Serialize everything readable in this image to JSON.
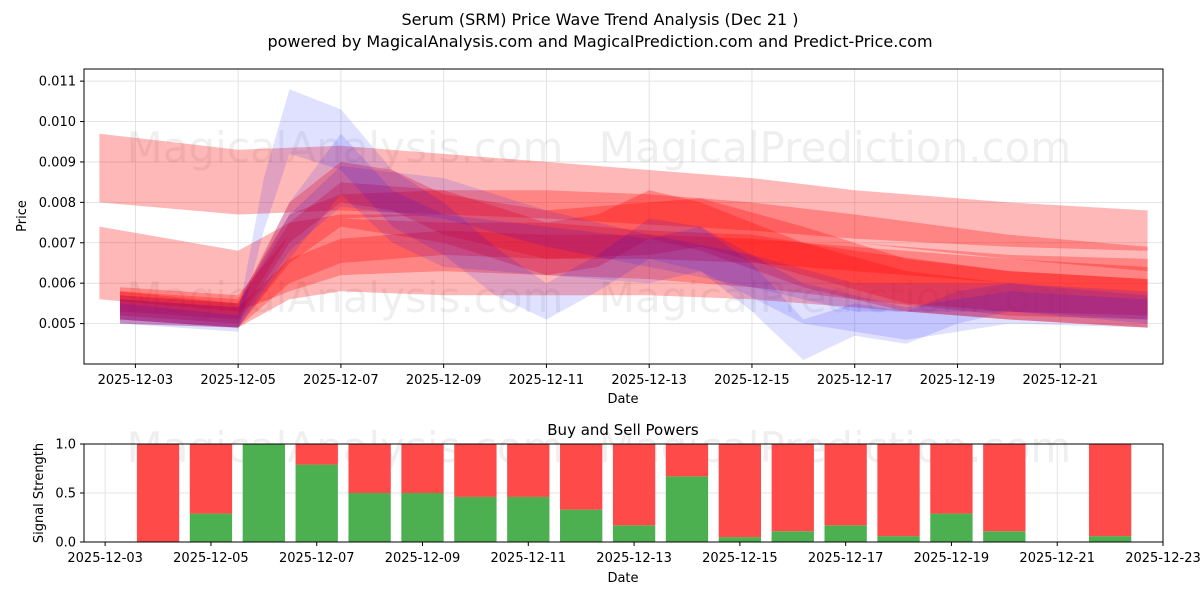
{
  "colors": {
    "red": "#ff0000",
    "blue": "#0000ff",
    "buy": "#4caf50",
    "sell": "#ff4a4a"
  },
  "figure": {
    "title_line1": "Serum (SRM) Price Wave Trend Analysis (Dec 21 )",
    "title_line2": "powered by MagicalAnalysis.com and MagicalPrediction.com and Predict-Price.com",
    "watermark_a": "MagicalAnalysis.com",
    "watermark_b": "MagicalPrediction.com"
  },
  "chart_data": [
    {
      "type": "area",
      "title": "",
      "xlabel": "Date",
      "ylabel": "Price",
      "xlim": [
        "2025-12-02",
        "2025-12-23"
      ],
      "ylim": [
        0.004,
        0.0113
      ],
      "x_ticks": [
        "2025-12-03",
        "2025-12-05",
        "2025-12-07",
        "2025-12-09",
        "2025-12-11",
        "2025-12-13",
        "2025-12-15",
        "2025-12-17",
        "2025-12-19",
        "2025-12-21"
      ],
      "y_ticks": [
        "0.005",
        "0.006",
        "0.007",
        "0.008",
        "0.009",
        "0.010",
        "0.011"
      ],
      "grid": true,
      "bands": [
        {
          "color": "red",
          "x": [
            "2025-12-02.3",
            "2025-12-05",
            "2025-12-07",
            "2025-12-11",
            "2025-12-15",
            "2025-12-17",
            "2025-12-20",
            "2025-12-22.7"
          ],
          "upper": [
            0.0097,
            0.0093,
            0.0094,
            0.009,
            0.0086,
            0.0083,
            0.008,
            0.0078
          ],
          "lower": [
            0.008,
            0.0077,
            0.0078,
            0.0076,
            0.0073,
            0.0071,
            0.0069,
            0.0068
          ]
        },
        {
          "color": "red",
          "x": [
            "2025-12-02.3",
            "2025-12-05",
            "2025-12-06",
            "2025-12-07",
            "2025-12-09",
            "2025-12-11",
            "2025-12-13",
            "2025-12-15",
            "2025-12-17",
            "2025-12-20",
            "2025-12-22.7"
          ],
          "upper": [
            0.0074,
            0.0068,
            0.0075,
            0.0077,
            0.0077,
            0.0076,
            0.0075,
            0.0073,
            0.007,
            0.0067,
            0.0066
          ],
          "lower": [
            0.0056,
            0.0053,
            0.0058,
            0.0062,
            0.0063,
            0.0062,
            0.0061,
            0.0059,
            0.0056,
            0.0052,
            0.0051
          ]
        },
        {
          "color": "red",
          "x": [
            "2025-12-02.7",
            "2025-12-05",
            "2025-12-06",
            "2025-12-07",
            "2025-12-09",
            "2025-12-11",
            "2025-12-13",
            "2025-12-15",
            "2025-12-17",
            "2025-12-20",
            "2025-12-22.7"
          ],
          "upper": [
            0.0059,
            0.0057,
            0.0072,
            0.0076,
            0.0075,
            0.0075,
            0.0073,
            0.0072,
            0.0068,
            0.0063,
            0.0061
          ],
          "lower": [
            0.0051,
            0.0049,
            0.0056,
            0.0058,
            0.0057,
            0.0057,
            0.0057,
            0.0056,
            0.0054,
            0.0051,
            0.0049
          ]
        },
        {
          "color": "red",
          "x": [
            "2025-12-02.7",
            "2025-12-05",
            "2025-12-06",
            "2025-12-07",
            "2025-12-09",
            "2025-12-11",
            "2025-12-13",
            "2025-12-15",
            "2025-12-17",
            "2025-12-20",
            "2025-12-22.7"
          ],
          "upper": [
            0.0058,
            0.0056,
            0.0077,
            0.0082,
            0.0083,
            0.0083,
            0.0082,
            0.008,
            0.0077,
            0.0072,
            0.0069
          ],
          "lower": [
            0.0053,
            0.0051,
            0.0072,
            0.0076,
            0.0077,
            0.0076,
            0.0075,
            0.0073,
            0.007,
            0.0066,
            0.0063
          ]
        },
        {
          "color": "red",
          "x": [
            "2025-12-02.7",
            "2025-12-05",
            "2025-12-06",
            "2025-12-07",
            "2025-12-09",
            "2025-12-11",
            "2025-12-13",
            "2025-12-15",
            "2025-12-17",
            "2025-12-20",
            "2025-12-22.7"
          ],
          "upper": [
            0.0056,
            0.0054,
            0.0066,
            0.0071,
            0.0073,
            0.0072,
            0.0072,
            0.0071,
            0.0069,
            0.0066,
            0.0064
          ],
          "lower": [
            0.0051,
            0.0049,
            0.006,
            0.0065,
            0.0067,
            0.0066,
            0.0066,
            0.0065,
            0.0063,
            0.006,
            0.0058
          ]
        },
        {
          "color": "red",
          "x": [
            "2025-12-02.7",
            "2025-12-05",
            "2025-12-06",
            "2025-12-07",
            "2025-12-08",
            "2025-12-09",
            "2025-12-11",
            "2025-12-13",
            "2025-12-14",
            "2025-12-16",
            "2025-12-18",
            "2025-12-20",
            "2025-12-22.7"
          ],
          "upper": [
            0.0058,
            0.0055,
            0.008,
            0.009,
            0.0088,
            0.0082,
            0.0078,
            0.008,
            0.0081,
            0.0074,
            0.0066,
            0.0063,
            0.0061
          ],
          "lower": [
            0.0052,
            0.005,
            0.007,
            0.008,
            0.0078,
            0.0072,
            0.0066,
            0.0067,
            0.0069,
            0.0062,
            0.0055,
            0.0053,
            0.0052
          ]
        },
        {
          "color": "red",
          "x": [
            "2025-12-02.7",
            "2025-12-05",
            "2025-12-06",
            "2025-12-07",
            "2025-12-09",
            "2025-12-11",
            "2025-12-12",
            "2025-12-13",
            "2025-12-14",
            "2025-12-16",
            "2025-12-18",
            "2025-12-20",
            "2025-12-22.7"
          ],
          "upper": [
            0.0057,
            0.0055,
            0.0075,
            0.0085,
            0.0083,
            0.0075,
            0.0077,
            0.0083,
            0.008,
            0.007,
            0.0063,
            0.006,
            0.0058
          ],
          "lower": [
            0.005,
            0.0049,
            0.0065,
            0.0074,
            0.007,
            0.0062,
            0.0064,
            0.0071,
            0.0068,
            0.0059,
            0.0053,
            0.0051,
            0.0049
          ]
        },
        {
          "color": "blue",
          "x": [
            "2025-12-02.7",
            "2025-12-05",
            "2025-12-05.5",
            "2025-12-06",
            "2025-12-07",
            "2025-12-08",
            "2025-12-09",
            "2025-12-10",
            "2025-12-11",
            "2025-12-12",
            "2025-12-13",
            "2025-12-14",
            "2025-12-15",
            "2025-12-16",
            "2025-12-17",
            "2025-12-18",
            "2025-12-19",
            "2025-12-20",
            "2025-12-22.7"
          ],
          "upper": [
            0.0055,
            0.0052,
            0.0086,
            0.0108,
            0.0103,
            0.0088,
            0.008,
            0.0069,
            0.006,
            0.0067,
            0.0076,
            0.0074,
            0.0065,
            0.0051,
            0.0055,
            0.0053,
            0.0058,
            0.006,
            0.0057
          ],
          "lower": [
            0.005,
            0.0048,
            0.0073,
            0.0092,
            0.0088,
            0.0074,
            0.0067,
            0.0057,
            0.0051,
            0.0058,
            0.0066,
            0.0063,
            0.0053,
            0.0041,
            0.0047,
            0.0045,
            0.005,
            0.0053,
            0.005
          ]
        },
        {
          "color": "blue",
          "x": [
            "2025-12-02.7",
            "2025-12-05",
            "2025-12-06",
            "2025-12-07",
            "2025-12-08",
            "2025-12-09",
            "2025-12-11",
            "2025-12-13",
            "2025-12-14",
            "2025-12-16",
            "2025-12-18",
            "2025-12-20",
            "2025-12-22.7"
          ],
          "upper": [
            0.0056,
            0.0054,
            0.008,
            0.0097,
            0.0083,
            0.0077,
            0.0074,
            0.0071,
            0.0074,
            0.006,
            0.0054,
            0.0058,
            0.0056
          ],
          "lower": [
            0.005,
            0.0049,
            0.0066,
            0.0082,
            0.007,
            0.0064,
            0.0062,
            0.006,
            0.0063,
            0.005,
            0.0046,
            0.005,
            0.0049
          ]
        },
        {
          "color": "blue",
          "x": [
            "2025-12-02.7",
            "2025-12-05",
            "2025-12-06",
            "2025-12-07",
            "2025-12-09",
            "2025-12-11",
            "2025-12-13",
            "2025-12-15",
            "2025-12-17",
            "2025-12-20",
            "2025-12-22.7"
          ],
          "upper": [
            0.0057,
            0.0055,
            0.0077,
            0.0089,
            0.0086,
            0.0078,
            0.0072,
            0.0067,
            0.006,
            0.006,
            0.0058
          ],
          "lower": [
            0.0051,
            0.0049,
            0.0068,
            0.0079,
            0.0076,
            0.0069,
            0.0064,
            0.0059,
            0.0053,
            0.0053,
            0.0051
          ]
        }
      ]
    },
    {
      "type": "bar",
      "title": "Buy and Sell Powers",
      "xlabel": "Date",
      "ylabel": "Signal Strength",
      "xlim": [
        "2025-12-02.6",
        "2025-12-23"
      ],
      "ylim": [
        0,
        1
      ],
      "x_ticks": [
        "2025-12-03",
        "2025-12-05",
        "2025-12-07",
        "2025-12-09",
        "2025-12-11",
        "2025-12-13",
        "2025-12-15",
        "2025-12-17",
        "2025-12-19",
        "2025-12-21",
        "2025-12-23"
      ],
      "y_ticks": [
        "0.0",
        "0.5",
        "1.0"
      ],
      "grid": true,
      "categories": [
        "2025-12-04",
        "2025-12-05",
        "2025-12-06",
        "2025-12-07",
        "2025-12-08",
        "2025-12-09",
        "2025-12-10",
        "2025-12-11",
        "2025-12-12",
        "2025-12-13",
        "2025-12-14",
        "2025-12-15",
        "2025-12-16",
        "2025-12-17",
        "2025-12-18",
        "2025-12-19",
        "2025-12-20",
        "2025-12-22"
      ],
      "series": [
        {
          "name": "Buy",
          "values": [
            0.0,
            0.29,
            1.0,
            0.79,
            0.5,
            0.5,
            0.46,
            0.46,
            0.33,
            0.17,
            0.67,
            0.05,
            0.11,
            0.17,
            0.06,
            0.29,
            0.11,
            0.06
          ]
        },
        {
          "name": "Sell",
          "values": [
            1.0,
            0.71,
            0.0,
            0.21,
            0.5,
            0.5,
            0.54,
            0.54,
            0.67,
            0.83,
            0.33,
            0.95,
            0.89,
            0.83,
            0.94,
            0.71,
            0.89,
            0.94
          ]
        }
      ]
    }
  ]
}
